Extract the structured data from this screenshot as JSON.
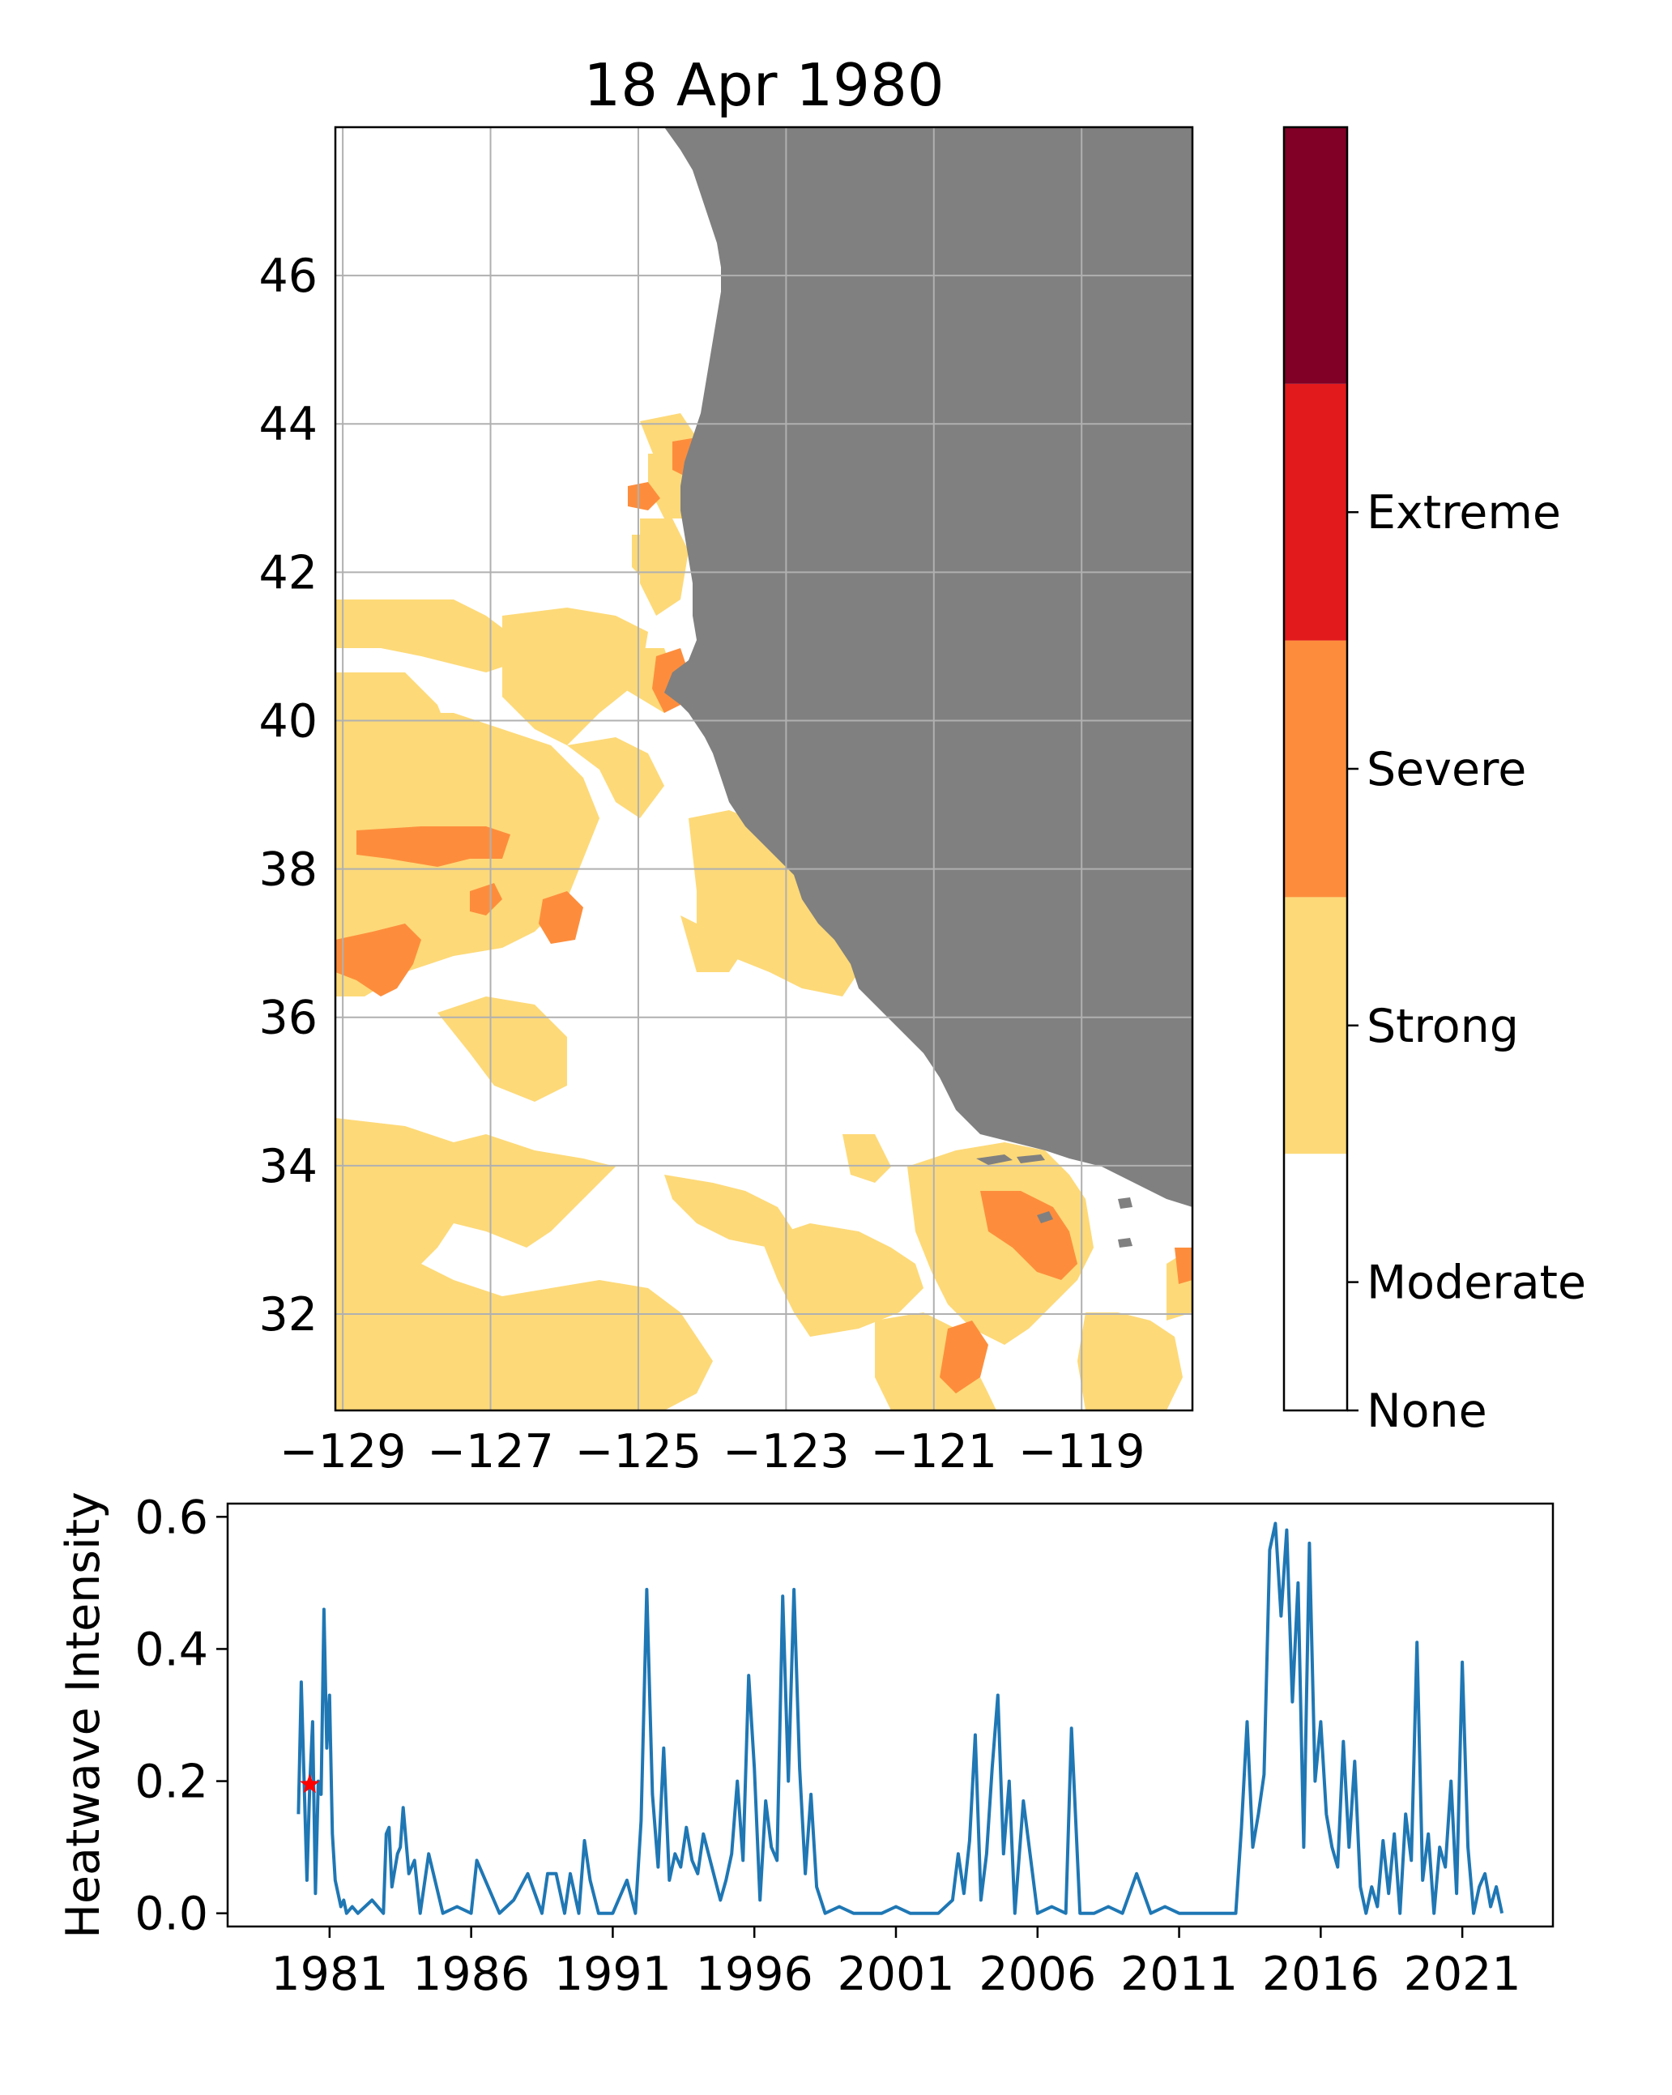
{
  "title": "18 Apr 1980",
  "colors": {
    "land": "#808080",
    "grid": "#b0b0b0",
    "moderate": "#fdd978",
    "strong": "#fd8d3c",
    "severe": "#e31a1c",
    "extreme": "#800026",
    "none": "#ffffff",
    "line": "#1f77b4",
    "marker": "#ff0000"
  },
  "map": {
    "type": "heatmap",
    "x_ticks": [
      "−129",
      "−127",
      "−125",
      "−123",
      "−121",
      "−119"
    ],
    "x_tick_values": [
      -129,
      -127,
      -125,
      -123,
      -121,
      -119
    ],
    "y_ticks": [
      "46",
      "44",
      "42",
      "40",
      "38",
      "36",
      "34",
      "32"
    ],
    "y_tick_values": [
      46,
      44,
      42,
      40,
      38,
      36,
      34,
      32
    ],
    "xlim": [
      -129.1,
      -117.5
    ],
    "ylim": [
      30.7,
      48.0
    ]
  },
  "colorbar": {
    "labels": [
      "None",
      "Moderate",
      "Strong",
      "Severe",
      "Extreme"
    ]
  },
  "chart_data": {
    "type": "line",
    "ylabel": "Heatwave Intensity",
    "x_ticks": [
      "1981",
      "1986",
      "1991",
      "1996",
      "2001",
      "2006",
      "2011",
      "2016",
      "2021"
    ],
    "y_ticks": [
      "0.0",
      "0.2",
      "0.4",
      "0.6"
    ],
    "xlim": [
      1977.4,
      2024.2
    ],
    "ylim": [
      -0.02,
      0.62
    ],
    "marker": {
      "x": 1980.3,
      "y": 0.195
    },
    "series": [
      {
        "x": [
          1979.9,
          1980.0,
          1980.1,
          1980.2,
          1980.3,
          1980.4,
          1980.5,
          1980.6,
          1980.7,
          1980.8,
          1980.9,
          1981.0,
          1981.1,
          1981.2,
          1981.3,
          1981.4,
          1981.5,
          1981.6,
          1981.8,
          1982.0,
          1982.5,
          1982.9,
          1983.0,
          1983.1,
          1983.2,
          1983.4,
          1983.5,
          1983.6,
          1983.8,
          1984.0,
          1984.2,
          1984.5,
          1985.0,
          1985.5,
          1986.0,
          1986.2,
          1986.5,
          1987.0,
          1987.5,
          1988.0,
          1988.5,
          1988.7,
          1989.0,
          1989.3,
          1989.5,
          1989.8,
          1990.0,
          1990.2,
          1990.5,
          1991.0,
          1991.5,
          1991.8,
          1992.0,
          1992.2,
          1992.4,
          1992.6,
          1992.8,
          1993.0,
          1993.2,
          1993.4,
          1993.6,
          1993.8,
          1994.0,
          1994.2,
          1994.5,
          1994.8,
          1995.0,
          1995.2,
          1995.4,
          1995.6,
          1995.8,
          1996.0,
          1996.2,
          1996.4,
          1996.6,
          1996.8,
          1997.0,
          1997.2,
          1997.4,
          1997.6,
          1997.8,
          1998.0,
          1998.2,
          1998.5,
          1999.0,
          1999.5,
          2000.0,
          2000.5,
          2001.0,
          2001.5,
          2002.0,
          2002.5,
          2003.0,
          2003.2,
          2003.4,
          2003.6,
          2003.8,
          2004.0,
          2004.2,
          2004.4,
          2004.6,
          2004.8,
          2005.0,
          2005.2,
          2005.5,
          2006.0,
          2006.5,
          2007.0,
          2007.2,
          2007.5,
          2008.0,
          2008.5,
          2009.0,
          2009.5,
          2010.0,
          2010.5,
          2011.0,
          2011.5,
          2012.0,
          2012.5,
          2013.0,
          2013.2,
          2013.4,
          2013.6,
          2013.8,
          2014.0,
          2014.2,
          2014.4,
          2014.6,
          2014.8,
          2015.0,
          2015.2,
          2015.4,
          2015.6,
          2015.8,
          2016.0,
          2016.2,
          2016.4,
          2016.6,
          2016.8,
          2017.0,
          2017.2,
          2017.4,
          2017.6,
          2017.8,
          2018.0,
          2018.2,
          2018.4,
          2018.6,
          2018.8,
          2019.0,
          2019.2,
          2019.4,
          2019.6,
          2019.8,
          2020.0,
          2020.2,
          2020.4,
          2020.6,
          2020.8,
          2021.0,
          2021.2,
          2021.4,
          2021.6,
          2021.8,
          2022.0,
          2022.2,
          2022.4
        ],
        "y": [
          0.15,
          0.35,
          0.2,
          0.05,
          0.195,
          0.29,
          0.03,
          0.2,
          0.18,
          0.46,
          0.25,
          0.33,
          0.12,
          0.05,
          0.03,
          0.01,
          0.02,
          0.0,
          0.01,
          0.0,
          0.02,
          0.0,
          0.12,
          0.13,
          0.04,
          0.09,
          0.1,
          0.16,
          0.06,
          0.08,
          0.0,
          0.09,
          0.0,
          0.01,
          0.0,
          0.08,
          0.05,
          0.0,
          0.02,
          0.06,
          0.0,
          0.06,
          0.06,
          0.0,
          0.06,
          0.0,
          0.11,
          0.05,
          0.0,
          0.0,
          0.05,
          0.0,
          0.14,
          0.49,
          0.18,
          0.07,
          0.25,
          0.05,
          0.09,
          0.07,
          0.13,
          0.08,
          0.06,
          0.12,
          0.07,
          0.02,
          0.05,
          0.09,
          0.2,
          0.08,
          0.36,
          0.22,
          0.02,
          0.17,
          0.1,
          0.08,
          0.48,
          0.2,
          0.49,
          0.22,
          0.06,
          0.18,
          0.04,
          0.0,
          0.01,
          0.0,
          0.0,
          0.0,
          0.01,
          0.0,
          0.0,
          0.0,
          0.02,
          0.09,
          0.03,
          0.11,
          0.27,
          0.02,
          0.09,
          0.22,
          0.33,
          0.09,
          0.2,
          0.0,
          0.17,
          0.0,
          0.01,
          0.0,
          0.28,
          0.0,
          0.0,
          0.01,
          0.0,
          0.06,
          0.0,
          0.01,
          0.0,
          0.0,
          0.0,
          0.0,
          0.0,
          0.13,
          0.29,
          0.1,
          0.15,
          0.21,
          0.55,
          0.59,
          0.45,
          0.58,
          0.32,
          0.5,
          0.1,
          0.56,
          0.2,
          0.29,
          0.15,
          0.1,
          0.07,
          0.26,
          0.1,
          0.23,
          0.04,
          0.0,
          0.04,
          0.01,
          0.11,
          0.03,
          0.12,
          0.0,
          0.15,
          0.08,
          0.41,
          0.05,
          0.12,
          0.0,
          0.1,
          0.07,
          0.2,
          0.03,
          0.38,
          0.1,
          0.0,
          0.04,
          0.06,
          0.01,
          0.04,
          0.0
        ]
      }
    ]
  }
}
